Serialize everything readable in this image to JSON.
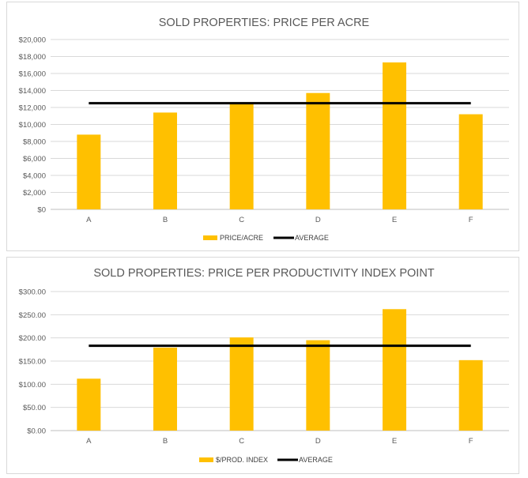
{
  "chart_data": [
    {
      "type": "bar",
      "title": "SOLD PROPERTIES: PRICE PER ACRE",
      "categories": [
        "A",
        "B",
        "C",
        "D",
        "E",
        "F"
      ],
      "series": [
        {
          "name": "PRICE/ACRE",
          "type": "bar",
          "color": "#FFC000",
          "values": [
            8800,
            11400,
            12500,
            13700,
            17300,
            11200
          ]
        },
        {
          "name": "AVERAGE",
          "type": "line",
          "color": "#000000",
          "values": [
            12500,
            12500,
            12500,
            12500,
            12500,
            12500
          ]
        }
      ],
      "ylim": [
        0,
        20000
      ],
      "yticks": [
        "$0",
        "$2,000",
        "$4,000",
        "$6,000",
        "$8,000",
        "$10,000",
        "$12,000",
        "$14,000",
        "$16,000",
        "$18,000",
        "$20,000"
      ],
      "grid": true,
      "legend": "bottom"
    },
    {
      "type": "bar",
      "title": "SOLD PROPERTIES: PRICE PER PRODUCTIVITY INDEX  POINT",
      "categories": [
        "A",
        "B",
        "C",
        "D",
        "E",
        "F"
      ],
      "series": [
        {
          "name": "$/PROD. INDEX",
          "type": "bar",
          "color": "#FFC000",
          "values": [
            112,
            179,
            201,
            195,
            262,
            152
          ]
        },
        {
          "name": "AVERAGE",
          "type": "line",
          "color": "#000000",
          "values": [
            183,
            183,
            183,
            183,
            183,
            183
          ]
        }
      ],
      "ylim": [
        0,
        300
      ],
      "yticks": [
        "$0.00",
        "$50.00",
        "$100.00",
        "$150.00",
        "$200.00",
        "$250.00",
        "$300.00"
      ],
      "grid": true,
      "legend": "bottom"
    }
  ]
}
